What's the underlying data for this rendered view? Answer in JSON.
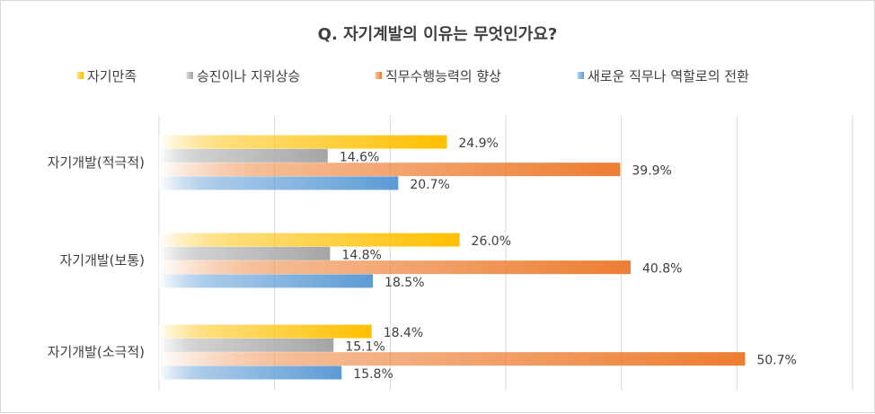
{
  "chart_data": {
    "type": "bar",
    "orientation": "horizontal",
    "title": "Q. 자기계발의 이유는 무엇인가요?",
    "categories": [
      "자기개발(적극적)",
      "자기개발(보통)",
      "자기개발(소극적)"
    ],
    "series": [
      {
        "name": "자기만족",
        "values": [
          24.9,
          26.0,
          18.4
        ],
        "color": "#ffc000"
      },
      {
        "name": "승진이나 지위상승",
        "values": [
          14.6,
          14.8,
          15.1
        ],
        "color": "#a5a5a5"
      },
      {
        "name": "직무수행능력의 향상",
        "values": [
          39.9,
          40.8,
          50.7
        ],
        "color": "#ed7d31"
      },
      {
        "name": "새로운 직무나 역할로의 전환",
        "values": [
          20.7,
          18.5,
          15.8
        ],
        "color": "#5b9bd5"
      }
    ],
    "value_labels": [
      [
        "24.9%",
        "26.0%",
        "18.4%"
      ],
      [
        "14.6%",
        "14.8%",
        "15.1%"
      ],
      [
        "39.9%",
        "40.8%",
        "50.7%"
      ],
      [
        "20.7%",
        "18.5%",
        "15.8%"
      ]
    ],
    "xlim": [
      0,
      60
    ],
    "grid": true,
    "legend": "top",
    "style": "gradient"
  }
}
